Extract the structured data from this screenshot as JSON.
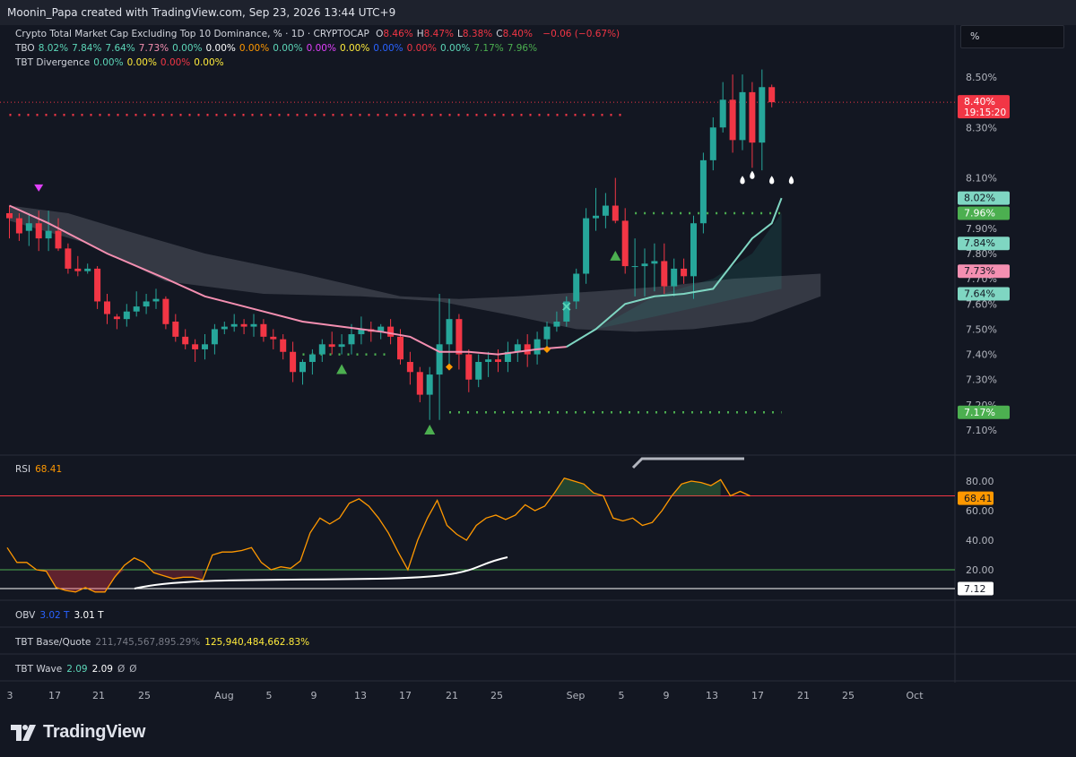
{
  "header": {
    "attribution": "Moonin_Papa created with TradingView.com, Sep 23, 2026 13:44 UTC+9"
  },
  "legend": {
    "main": {
      "title": "Crypto Total Market Cap Excluding Top 10 Dominance, % · 1D · CRYPTOCAP",
      "ohlc": [
        {
          "k": "O",
          "v": "8.46%"
        },
        {
          "k": "H",
          "v": "8.47%"
        },
        {
          "k": "L",
          "v": "8.38%"
        },
        {
          "k": "C",
          "v": "8.40%"
        }
      ],
      "change": "−0.06 (−0.67%)"
    },
    "tbo": {
      "name": "TBO",
      "values": [
        "8.02%",
        "7.84%",
        "7.64%",
        "7.73%",
        "0.00%",
        "0.00%",
        "0.00%",
        "0.00%",
        "0.00%",
        "0.00%",
        "0.00%",
        "0.00%",
        "0.00%",
        "7.17%",
        "7.96%"
      ],
      "colors": [
        "#5cd6b8",
        "#5cd6b8",
        "#5cd6b8",
        "#f48fb1",
        "#5cd6b8",
        "#ffffff",
        "#ff9800",
        "#5cd6b8",
        "#e040fb",
        "#ffeb3b",
        "#2962ff",
        "#f23645",
        "#5cd6b8",
        "#4caf50",
        "#4caf50"
      ]
    },
    "divergence": {
      "name": "TBT Divergence",
      "values": [
        "0.00%",
        "0.00%",
        "0.00%",
        "0.00%"
      ],
      "colors": [
        "#5cd6b8",
        "#ffeb3b",
        "#f23645",
        "#ffeb3b"
      ]
    }
  },
  "unit_box": "%",
  "price_axis": {
    "ticks": [
      "8.50%",
      "8.30%",
      "8.10%",
      "7.90%",
      "7.80%",
      "7.70%",
      "7.60%",
      "7.50%",
      "7.40%",
      "7.30%",
      "7.20%",
      "7.10%"
    ],
    "badges": [
      {
        "text": "8.40%",
        "sub": "19:15:20",
        "bg": "#f23645",
        "fg": "#ffffff"
      },
      {
        "text": "8.02%",
        "bg": "#7fd6c2",
        "fg": "#131722"
      },
      {
        "text": "7.96%",
        "bg": "#4caf50",
        "fg": "#ffffff"
      },
      {
        "text": "7.84%",
        "bg": "#7fd6c2",
        "fg": "#131722"
      },
      {
        "text": "7.73%",
        "bg": "#f48fb1",
        "fg": "#131722"
      },
      {
        "text": "7.64%",
        "bg": "#7fd6c2",
        "fg": "#131722"
      },
      {
        "text": "7.17%",
        "bg": "#4caf50",
        "fg": "#ffffff"
      }
    ]
  },
  "rsi_panel": {
    "name": "RSI",
    "value": "68.41",
    "ticks": [
      "80.00",
      "60.00",
      "40.00",
      "20.00"
    ],
    "badges": [
      {
        "text": "68.41",
        "bg": "#ff9800",
        "fg": "#131722"
      },
      {
        "text": "7.12",
        "bg": "#ffffff",
        "fg": "#131722"
      }
    ]
  },
  "obv_panel": {
    "name": "OBV",
    "values": [
      "3.02 T",
      "3.01 T"
    ]
  },
  "base_quote_panel": {
    "name": "TBT Base/Quote",
    "values": [
      "211,745,567,895.29%",
      "125,940,484,662.83%"
    ]
  },
  "wave_panel": {
    "name": "TBT Wave",
    "values": [
      "2.09",
      "2.09",
      "Ø",
      "Ø"
    ]
  },
  "time_axis": {
    "labels": [
      "3",
      "17",
      "21",
      "25",
      "Aug",
      "5",
      "9",
      "13",
      "17",
      "21",
      "25",
      "Sep",
      "5",
      "9",
      "13",
      "17",
      "21",
      "25",
      "Oct"
    ]
  },
  "brand": "TradingView",
  "chart_data": {
    "type": "candlestick",
    "title": "Crypto Total Market Cap Excluding Top 10 Dominance, % · 1D · CRYPTOCAP",
    "unit": "%",
    "ylim": [
      7.04,
      8.58
    ],
    "x_range_days": [
      "Jul 13",
      "Oct 1"
    ],
    "candles": [
      {
        "d": "Jul 13",
        "o": 7.96,
        "h": 7.99,
        "l": 7.86,
        "c": 7.94
      },
      {
        "d": "Jul 14",
        "o": 7.94,
        "h": 7.96,
        "l": 7.85,
        "c": 7.88
      },
      {
        "d": "Jul 15",
        "o": 7.89,
        "h": 7.96,
        "l": 7.83,
        "c": 7.92
      },
      {
        "d": "Jul 16",
        "o": 7.92,
        "h": 7.97,
        "l": 7.81,
        "c": 7.86
      },
      {
        "d": "Jul 17",
        "o": 7.86,
        "h": 7.97,
        "l": 7.81,
        "c": 7.89
      },
      {
        "d": "Jul 18",
        "o": 7.89,
        "h": 7.94,
        "l": 7.81,
        "c": 7.82
      },
      {
        "d": "Jul 19",
        "o": 7.82,
        "h": 7.84,
        "l": 7.72,
        "c": 7.74
      },
      {
        "d": "Jul 20",
        "o": 7.74,
        "h": 7.79,
        "l": 7.71,
        "c": 7.73
      },
      {
        "d": "Jul 21",
        "o": 7.73,
        "h": 7.76,
        "l": 7.72,
        "c": 7.74
      },
      {
        "d": "Jul 22",
        "o": 7.74,
        "h": 7.75,
        "l": 7.58,
        "c": 7.61
      },
      {
        "d": "Jul 23",
        "o": 7.61,
        "h": 7.64,
        "l": 7.52,
        "c": 7.56
      },
      {
        "d": "Jul 24",
        "o": 7.55,
        "h": 7.56,
        "l": 7.5,
        "c": 7.54
      },
      {
        "d": "Jul 25",
        "o": 7.54,
        "h": 7.6,
        "l": 7.51,
        "c": 7.57
      },
      {
        "d": "Jul 26",
        "o": 7.57,
        "h": 7.65,
        "l": 7.55,
        "c": 7.59
      },
      {
        "d": "Jul 27",
        "o": 7.59,
        "h": 7.64,
        "l": 7.56,
        "c": 7.61
      },
      {
        "d": "Jul 28",
        "o": 7.61,
        "h": 7.66,
        "l": 7.58,
        "c": 7.62
      },
      {
        "d": "Jul 29",
        "o": 7.62,
        "h": 7.63,
        "l": 7.5,
        "c": 7.52
      },
      {
        "d": "Jul 30",
        "o": 7.53,
        "h": 7.56,
        "l": 7.45,
        "c": 7.47
      },
      {
        "d": "Jul 31",
        "o": 7.47,
        "h": 7.5,
        "l": 7.42,
        "c": 7.44
      },
      {
        "d": "Aug 1",
        "o": 7.44,
        "h": 7.46,
        "l": 7.37,
        "c": 7.42
      },
      {
        "d": "Aug 2",
        "o": 7.42,
        "h": 7.48,
        "l": 7.38,
        "c": 7.44
      },
      {
        "d": "Aug 3",
        "o": 7.44,
        "h": 7.52,
        "l": 7.4,
        "c": 7.5
      },
      {
        "d": "Aug 4",
        "o": 7.5,
        "h": 7.53,
        "l": 7.48,
        "c": 7.51
      },
      {
        "d": "Aug 5",
        "o": 7.51,
        "h": 7.56,
        "l": 7.49,
        "c": 7.52
      },
      {
        "d": "Aug 6",
        "o": 7.52,
        "h": 7.54,
        "l": 7.48,
        "c": 7.51
      },
      {
        "d": "Aug 7",
        "o": 7.51,
        "h": 7.56,
        "l": 7.47,
        "c": 7.52
      },
      {
        "d": "Aug 8",
        "o": 7.52,
        "h": 7.54,
        "l": 7.45,
        "c": 7.47
      },
      {
        "d": "Aug 9",
        "o": 7.47,
        "h": 7.5,
        "l": 7.42,
        "c": 7.46
      },
      {
        "d": "Aug 10",
        "o": 7.46,
        "h": 7.48,
        "l": 7.38,
        "c": 7.41
      },
      {
        "d": "Aug 11",
        "o": 7.41,
        "h": 7.45,
        "l": 7.29,
        "c": 7.33
      },
      {
        "d": "Aug 12",
        "o": 7.33,
        "h": 7.38,
        "l": 7.28,
        "c": 7.37
      },
      {
        "d": "Aug 13",
        "o": 7.37,
        "h": 7.42,
        "l": 7.32,
        "c": 7.4
      },
      {
        "d": "Aug 14",
        "o": 7.4,
        "h": 7.46,
        "l": 7.37,
        "c": 7.44
      },
      {
        "d": "Aug 15",
        "o": 7.44,
        "h": 7.49,
        "l": 7.4,
        "c": 7.43
      },
      {
        "d": "Aug 16",
        "o": 7.43,
        "h": 7.48,
        "l": 7.4,
        "c": 7.44
      },
      {
        "d": "Aug 17",
        "o": 7.44,
        "h": 7.52,
        "l": 7.4,
        "c": 7.48
      },
      {
        "d": "Aug 18",
        "o": 7.48,
        "h": 7.55,
        "l": 7.44,
        "c": 7.5
      },
      {
        "d": "Aug 19",
        "o": 7.5,
        "h": 7.53,
        "l": 7.45,
        "c": 7.49
      },
      {
        "d": "Aug 20",
        "o": 7.49,
        "h": 7.52,
        "l": 7.46,
        "c": 7.51
      },
      {
        "d": "Aug 21",
        "o": 7.51,
        "h": 7.54,
        "l": 7.44,
        "c": 7.47
      },
      {
        "d": "Aug 22",
        "o": 7.47,
        "h": 7.5,
        "l": 7.36,
        "c": 7.38
      },
      {
        "d": "Aug 23",
        "o": 7.37,
        "h": 7.41,
        "l": 7.28,
        "c": 7.33
      },
      {
        "d": "Aug 24",
        "o": 7.33,
        "h": 7.35,
        "l": 7.21,
        "c": 7.24
      },
      {
        "d": "Aug 25",
        "o": 7.24,
        "h": 7.35,
        "l": 7.14,
        "c": 7.32
      },
      {
        "d": "Aug 26",
        "o": 7.32,
        "h": 7.64,
        "l": 7.14,
        "c": 7.44
      },
      {
        "d": "Aug 27",
        "o": 7.44,
        "h": 7.62,
        "l": 7.36,
        "c": 7.54
      },
      {
        "d": "Aug 28",
        "o": 7.54,
        "h": 7.56,
        "l": 7.34,
        "c": 7.4
      },
      {
        "d": "Aug 29",
        "o": 7.4,
        "h": 7.42,
        "l": 7.25,
        "c": 7.3
      },
      {
        "d": "Aug 30",
        "o": 7.3,
        "h": 7.4,
        "l": 7.27,
        "c": 7.37
      },
      {
        "d": "Aug 31",
        "o": 7.37,
        "h": 7.41,
        "l": 7.31,
        "c": 7.38
      },
      {
        "d": "Sep 1",
        "o": 7.38,
        "h": 7.42,
        "l": 7.33,
        "c": 7.37
      },
      {
        "d": "Sep 2",
        "o": 7.37,
        "h": 7.45,
        "l": 7.33,
        "c": 7.41
      },
      {
        "d": "Sep 3",
        "o": 7.41,
        "h": 7.46,
        "l": 7.37,
        "c": 7.44
      },
      {
        "d": "Sep 4",
        "o": 7.44,
        "h": 7.48,
        "l": 7.35,
        "c": 7.4
      },
      {
        "d": "Sep 5",
        "o": 7.4,
        "h": 7.49,
        "l": 7.36,
        "c": 7.46
      },
      {
        "d": "Sep 6",
        "o": 7.46,
        "h": 7.53,
        "l": 7.43,
        "c": 7.51
      },
      {
        "d": "Sep 7",
        "o": 7.51,
        "h": 7.57,
        "l": 7.49,
        "c": 7.53
      },
      {
        "d": "Sep 8",
        "o": 7.53,
        "h": 7.63,
        "l": 7.51,
        "c": 7.61
      },
      {
        "d": "Sep 9",
        "o": 7.61,
        "h": 7.74,
        "l": 7.58,
        "c": 7.72
      },
      {
        "d": "Sep 10",
        "o": 7.72,
        "h": 7.98,
        "l": 7.68,
        "c": 7.94
      },
      {
        "d": "Sep 11",
        "o": 7.94,
        "h": 8.06,
        "l": 7.89,
        "c": 7.95
      },
      {
        "d": "Sep 12",
        "o": 7.95,
        "h": 8.04,
        "l": 7.9,
        "c": 7.99
      },
      {
        "d": "Sep 13",
        "o": 7.99,
        "h": 8.1,
        "l": 7.92,
        "c": 7.93
      },
      {
        "d": "Sep 14",
        "o": 7.93,
        "h": 7.98,
        "l": 7.72,
        "c": 7.75
      },
      {
        "d": "Sep 15",
        "o": 7.75,
        "h": 7.86,
        "l": 7.63,
        "c": 7.75
      },
      {
        "d": "Sep 16",
        "o": 7.75,
        "h": 7.82,
        "l": 7.63,
        "c": 7.76
      },
      {
        "d": "Sep 17",
        "o": 7.76,
        "h": 7.84,
        "l": 7.65,
        "c": 7.77
      },
      {
        "d": "Sep 18",
        "o": 7.77,
        "h": 7.84,
        "l": 7.64,
        "c": 7.67
      },
      {
        "d": "Sep 19",
        "o": 7.67,
        "h": 7.78,
        "l": 7.63,
        "c": 7.74
      },
      {
        "d": "Sep 20",
        "o": 7.74,
        "h": 7.78,
        "l": 7.68,
        "c": 7.71
      },
      {
        "d": "Sep 21",
        "o": 7.71,
        "h": 7.95,
        "l": 7.62,
        "c": 7.92
      },
      {
        "d": "Sep 22",
        "o": 7.92,
        "h": 8.2,
        "l": 7.88,
        "c": 8.17
      },
      {
        "d": "Sep 23",
        "o": 8.17,
        "h": 8.34,
        "l": 8.13,
        "c": 8.3
      },
      {
        "d": "Sep 24",
        "o": 8.3,
        "h": 8.48,
        "l": 8.28,
        "c": 8.41
      },
      {
        "d": "Sep 25",
        "o": 8.41,
        "h": 8.51,
        "l": 8.2,
        "c": 8.25
      },
      {
        "d": "Sep 26",
        "o": 8.25,
        "h": 8.51,
        "l": 8.21,
        "c": 8.44
      },
      {
        "d": "Sep 27",
        "o": 8.44,
        "h": 8.48,
        "l": 8.14,
        "c": 8.24
      },
      {
        "d": "Sep 28",
        "o": 8.24,
        "h": 8.53,
        "l": 8.13,
        "c": 8.46
      },
      {
        "d": "Sep 29",
        "o": 8.46,
        "h": 8.47,
        "l": 8.38,
        "c": 8.4
      }
    ],
    "lines": {
      "tbo_fast": {
        "color": "#f48fb1",
        "points": [
          [
            0,
            7.99
          ],
          [
            4,
            7.92
          ],
          [
            10,
            7.8
          ],
          [
            16,
            7.7
          ],
          [
            20,
            7.63
          ],
          [
            26,
            7.57
          ],
          [
            30,
            7.53
          ],
          [
            34,
            7.51
          ],
          [
            38,
            7.49
          ],
          [
            41,
            7.47
          ],
          [
            44,
            7.41
          ],
          [
            47,
            7.41
          ],
          [
            50,
            7.4
          ],
          [
            54,
            7.42
          ],
          [
            57,
            7.43
          ]
        ]
      },
      "tbo_slow": {
        "color": "#7fd6c2",
        "points": [
          [
            57,
            7.43
          ],
          [
            60,
            7.5
          ],
          [
            63,
            7.6
          ],
          [
            66,
            7.63
          ],
          [
            69,
            7.64
          ],
          [
            72,
            7.66
          ],
          [
            74,
            7.76
          ],
          [
            76,
            7.86
          ],
          [
            78,
            7.92
          ],
          [
            79,
            8.02
          ]
        ]
      }
    },
    "levels": [
      {
        "name": "red-dotted-level",
        "value": 8.35,
        "from": 0,
        "to": 63,
        "color": "#f23645"
      },
      {
        "name": "green-dotted-level-high",
        "value": 7.96,
        "from": 64,
        "to": 79,
        "color": "#4caf50"
      },
      {
        "name": "green-dotted-level-low",
        "value": 7.17,
        "from": 45,
        "to": 79,
        "color": "#4caf50"
      },
      {
        "name": "green-dotted-level-mid",
        "value": 7.4,
        "from": 30,
        "to": 39,
        "color": "#4caf50"
      }
    ],
    "markers": [
      {
        "name": "bear-signal",
        "i": 3,
        "value": 8.06,
        "shape": "triangle-down",
        "color": "#e040fb"
      },
      {
        "name": "bull-signal",
        "i": 34,
        "value": 7.34,
        "shape": "triangle-up",
        "color": "#4caf50"
      },
      {
        "name": "bull-signal",
        "i": 43,
        "value": 7.1,
        "shape": "triangle-up",
        "color": "#4caf50"
      },
      {
        "name": "diamond-signal",
        "i": 45,
        "value": 7.35,
        "shape": "diamond",
        "color": "#ff9800"
      },
      {
        "name": "diamond-signal",
        "i": 55,
        "value": 7.42,
        "shape": "diamond",
        "color": "#ff9800"
      },
      {
        "name": "cross-signal",
        "i": 57,
        "value": 7.59,
        "shape": "x",
        "color": "#5cd6b8"
      },
      {
        "name": "tri-signal",
        "i": 62,
        "value": 7.79,
        "shape": "triangle-up",
        "color": "#4caf50"
      },
      {
        "name": "white-drop",
        "i": 75,
        "value": 8.09,
        "shape": "drop",
        "color": "#ffffff"
      },
      {
        "name": "white-drop",
        "i": 76,
        "value": 8.11,
        "shape": "drop",
        "color": "#ffffff"
      },
      {
        "name": "white-drop",
        "i": 78,
        "value": 8.09,
        "shape": "drop",
        "color": "#ffffff"
      },
      {
        "name": "white-drop",
        "i": 80,
        "value": 8.09,
        "shape": "drop",
        "color": "#ffffff"
      }
    ],
    "rsi": {
      "ylim": [
        5,
        95
      ],
      "upper": 70,
      "lower": 20,
      "values": [
        35,
        25,
        25,
        20,
        19,
        8,
        6,
        5,
        8,
        5,
        5,
        15,
        23,
        28,
        25,
        18,
        16,
        14,
        15,
        15,
        13,
        30,
        32,
        32,
        33,
        35,
        25,
        20,
        22,
        21,
        26,
        45,
        55,
        51,
        55,
        65,
        68,
        63,
        55,
        45,
        32,
        20,
        40,
        55,
        67,
        50,
        44,
        40,
        50,
        55,
        57,
        54,
        57,
        64,
        60,
        63,
        72,
        82,
        80,
        78,
        72,
        70,
        55,
        53,
        55,
        50,
        52,
        60,
        70,
        78,
        80,
        79,
        77,
        81,
        70,
        73,
        70
      ]
    }
  }
}
